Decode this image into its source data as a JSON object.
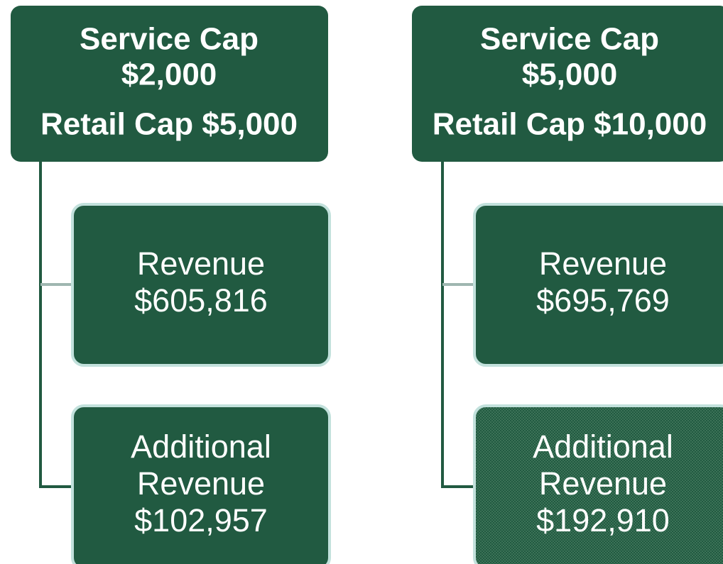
{
  "columns": [
    {
      "header": [
        "Service Cap",
        "$2,000",
        "Retail Cap $5,000"
      ],
      "children": [
        {
          "lines": [
            "Revenue",
            "$605,816"
          ]
        },
        {
          "lines": [
            "Additional",
            "Revenue",
            "$102,957"
          ]
        }
      ]
    },
    {
      "header": [
        "Service Cap",
        "$5,000",
        "Retail Cap $10,000"
      ],
      "children": [
        {
          "lines": [
            "Revenue",
            "$695,769"
          ]
        },
        {
          "lines": [
            "Additional",
            "Revenue",
            "$192,910"
          ]
        }
      ]
    }
  ]
}
